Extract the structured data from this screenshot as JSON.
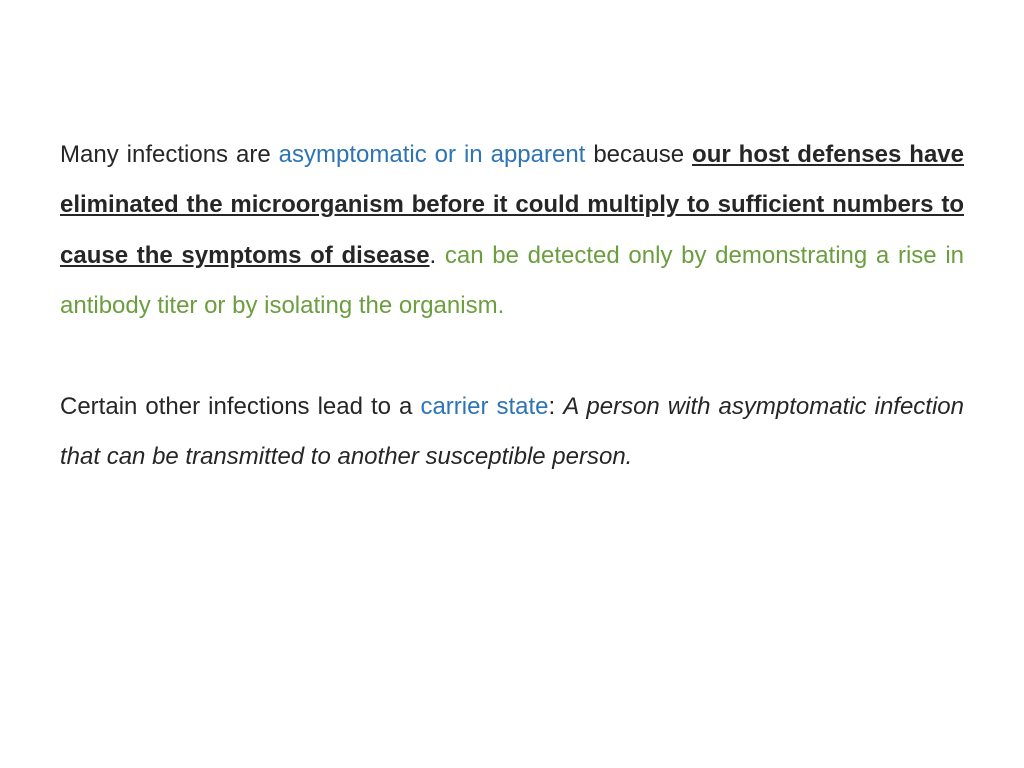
{
  "colors": {
    "text": "#262626",
    "blue": "#2e74b5",
    "green": "#6b9e3f",
    "background": "#ffffff"
  },
  "typography": {
    "font_family": "Comic Sans MS",
    "font_size_pt": 24,
    "line_height": 2.1
  },
  "para1": {
    "s1": "Many infections are ",
    "s2": "asymptomatic or in apparent ",
    "s3": "because ",
    "s4": "our host defenses have eliminated the microorganism before it could multiply to sufficient numbers to cause the symptoms of disease",
    "s5": ". ",
    "s6": "can be detected only by demonstrating a rise in antibody titer or by isolating the organism."
  },
  "para2": {
    "s1": "Certain other infections lead to a ",
    "s2": "carrier state",
    "s3": ": ",
    "s4": "A person  with asymptomatic infection that can be transmitted to another susceptible person."
  }
}
